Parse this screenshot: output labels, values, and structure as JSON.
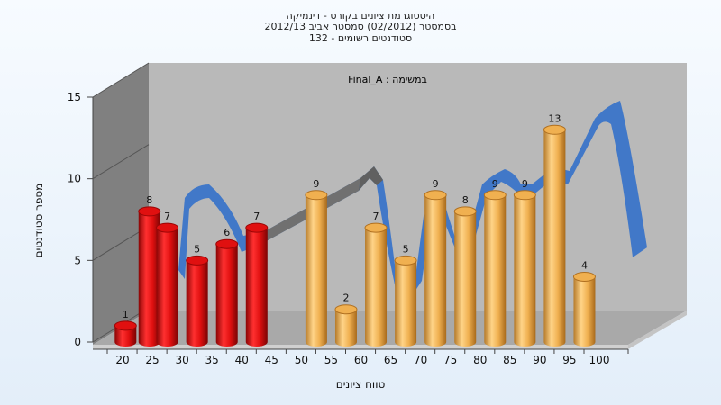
{
  "chart_data": {
    "type": "bar",
    "title_lines": [
      "היסטוגרמת ציונים בקורס - דינמיקה",
      "בסמסטר  (02/2012)  סמסטר אביב 2012/13",
      "סטודנטים רשומים - 132"
    ],
    "annotation": "Final_A : במשימה",
    "xlabel": "טווח ציונים",
    "ylabel": "מספר סטודנטים",
    "ylim": [
      0,
      15
    ],
    "y_ticks": [
      0,
      5,
      10,
      15
    ],
    "x_ticks": [
      20,
      25,
      30,
      35,
      40,
      45,
      50,
      55,
      60,
      65,
      70,
      75,
      80,
      85,
      90,
      95,
      100
    ],
    "grid": false,
    "bars": [
      {
        "x": 20.5,
        "value": 1,
        "label": "1",
        "group": "red"
      },
      {
        "x": 24.5,
        "value": 8,
        "label": "8",
        "group": "red"
      },
      {
        "x": 27.5,
        "value": 7,
        "label": "7",
        "group": "red"
      },
      {
        "x": 32.5,
        "value": 5,
        "label": "5",
        "group": "red"
      },
      {
        "x": 37.5,
        "value": 6,
        "label": "6",
        "group": "red"
      },
      {
        "x": 42.5,
        "value": 7,
        "label": "7",
        "group": "red"
      },
      {
        "x": 52.5,
        "value": 9,
        "label": "9",
        "group": "orange"
      },
      {
        "x": 57.5,
        "value": 2,
        "label": "2",
        "group": "orange"
      },
      {
        "x": 62.5,
        "value": 7,
        "label": "7",
        "group": "orange"
      },
      {
        "x": 67.5,
        "value": 5,
        "label": "5",
        "group": "orange"
      },
      {
        "x": 72.5,
        "value": 9,
        "label": "9",
        "group": "orange"
      },
      {
        "x": 77.5,
        "value": 8,
        "label": "8",
        "group": "orange"
      },
      {
        "x": 82.5,
        "value": 9,
        "label": "9",
        "group": "orange"
      },
      {
        "x": 87.5,
        "value": 9,
        "label": "9",
        "group": "orange"
      },
      {
        "x": 92.5,
        "value": 13,
        "label": "13",
        "group": "orange"
      },
      {
        "x": 97.5,
        "value": 4,
        "label": "4",
        "group": "orange"
      }
    ],
    "colors": {
      "red": "#e01010",
      "red_dark": "#9a0606",
      "orange": "#f0b050",
      "orange_dark": "#b07020",
      "ribbon": "#3a74c8",
      "ribbon_gray": "#707070",
      "back_wall": "#b9b9b9",
      "left_wall": "#808080",
      "floor": "#a9a9a9"
    }
  }
}
